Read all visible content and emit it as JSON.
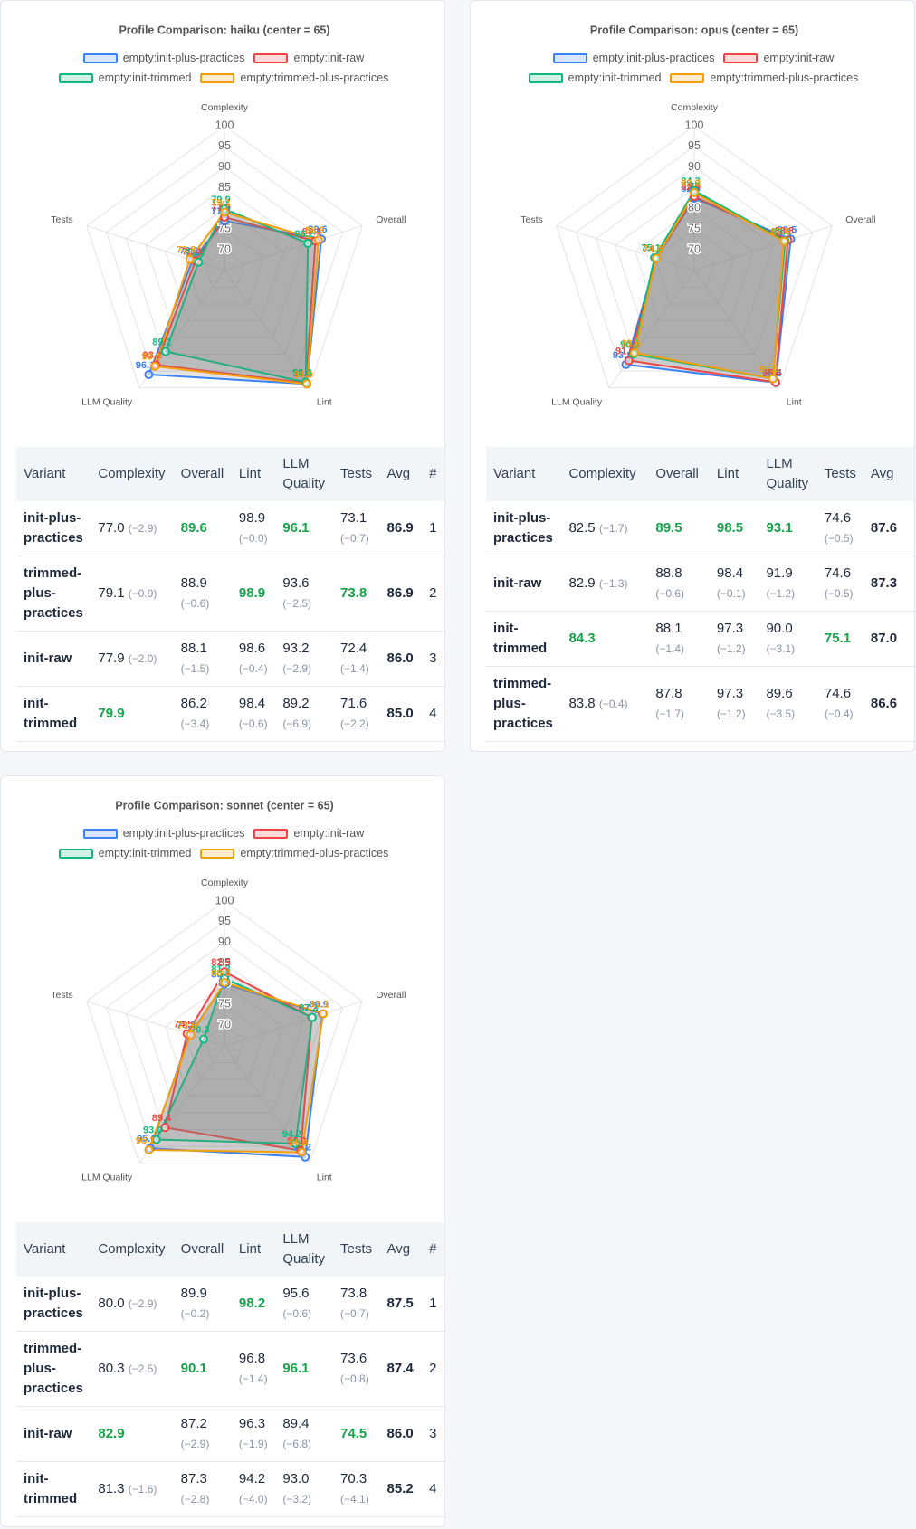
{
  "chart_data": [
    {
      "type": "radar",
      "title": "Profile Comparison: haiku  (center = 65)",
      "axes": [
        "Complexity",
        "Overall",
        "Lint",
        "LLM Quality",
        "Tests"
      ],
      "rlim": [
        65,
        100
      ],
      "rticks": [
        70,
        75,
        80,
        85,
        90,
        95,
        100
      ],
      "series": [
        {
          "name": "empty:init-plus-practices",
          "color": "#3b82f6",
          "values": [
            77.0,
            89.6,
            98.9,
            96.1,
            73.1
          ],
          "value_labels": [
            "77.0",
            "89.6",
            "98.9",
            "96.1",
            "73.1"
          ]
        },
        {
          "name": "empty:init-raw",
          "color": "#ef4444",
          "values": [
            77.9,
            88.1,
            98.6,
            93.2,
            72.4
          ],
          "value_labels": [
            "77.9",
            "88.1",
            "98.6",
            "93.2",
            "72.4"
          ]
        },
        {
          "name": "empty:init-trimmed",
          "color": "#10b981",
          "values": [
            79.9,
            86.2,
            98.4,
            89.2,
            71.6
          ],
          "value_labels": [
            "79.9",
            "86.2",
            "98.4",
            "89.2",
            "71.6"
          ]
        },
        {
          "name": "empty:trimmed-plus-practices",
          "color": "#f59e0b",
          "values": [
            79.1,
            88.9,
            98.9,
            93.6,
            73.8
          ],
          "value_labels": [
            "79.1",
            "88.9",
            "98.9",
            "93.6",
            "73.8"
          ]
        }
      ]
    },
    {
      "type": "radar",
      "title": "Profile Comparison: opus  (center = 65)",
      "axes": [
        "Complexity",
        "Overall",
        "Lint",
        "LLM Quality",
        "Tests"
      ],
      "rlim": [
        65,
        100
      ],
      "rticks": [
        70,
        75,
        80,
        85,
        90,
        95,
        100
      ],
      "series": [
        {
          "name": "empty:init-plus-practices",
          "color": "#3b82f6",
          "values": [
            82.5,
            89.5,
            98.5,
            93.1,
            74.6
          ],
          "value_labels": [
            "82.5",
            "89.5",
            "98.5",
            "93.1",
            "74.6"
          ]
        },
        {
          "name": "empty:init-raw",
          "color": "#ef4444",
          "values": [
            82.9,
            88.8,
            98.4,
            91.9,
            74.6
          ],
          "value_labels": [
            "82.9",
            "88.8",
            "98.4",
            "91.9",
            "74.6"
          ]
        },
        {
          "name": "empty:init-trimmed",
          "color": "#10b981",
          "values": [
            84.3,
            88.1,
            97.3,
            90.0,
            75.1
          ],
          "value_labels": [
            "84.3",
            "88.1",
            "97.3",
            "90.0",
            "75.1"
          ]
        },
        {
          "name": "empty:trimmed-plus-practices",
          "color": "#f59e0b",
          "values": [
            83.8,
            87.8,
            97.3,
            89.6,
            74.6
          ],
          "value_labels": [
            "83.8",
            "87.8",
            "97.3",
            "89.6",
            "74.6"
          ]
        }
      ]
    },
    {
      "type": "radar",
      "title": "Profile Comparison: sonnet  (center = 65)",
      "axes": [
        "Complexity",
        "Overall",
        "Lint",
        "LLM Quality",
        "Tests"
      ],
      "rlim": [
        65,
        100
      ],
      "rticks": [
        70,
        75,
        80,
        85,
        90,
        95,
        100
      ],
      "series": [
        {
          "name": "empty:init-plus-practices",
          "color": "#3b82f6",
          "values": [
            80.0,
            89.9,
            98.2,
            95.6,
            73.8
          ],
          "value_labels": [
            "80.0",
            "89.9",
            "98.2",
            "95.6",
            "73.8"
          ]
        },
        {
          "name": "empty:init-raw",
          "color": "#ef4444",
          "values": [
            82.9,
            87.2,
            96.3,
            89.4,
            74.5
          ],
          "value_labels": [
            "82.9",
            "87.2",
            "96.3",
            "89.4",
            "74.5"
          ]
        },
        {
          "name": "empty:init-trimmed",
          "color": "#10b981",
          "values": [
            81.3,
            87.3,
            94.2,
            93.0,
            70.3
          ],
          "value_labels": [
            "81.3",
            "87.3",
            "94.2",
            "93.0",
            "70.3"
          ]
        },
        {
          "name": "empty:trimmed-plus-practices",
          "color": "#f59e0b",
          "values": [
            80.3,
            90.1,
            96.8,
            96.1,
            73.6
          ],
          "value_labels": [
            "80.3",
            "90.1",
            "96.8",
            "96.1",
            "73.6"
          ]
        }
      ]
    }
  ],
  "tables": [
    {
      "columns": [
        "Variant",
        "Complexity",
        "Overall",
        "Lint",
        "LLM Quality",
        "Tests",
        "Avg",
        "#"
      ],
      "rows": [
        {
          "variant": "init-plus-practices",
          "scores": [
            {
              "value": "77.0",
              "delta": "(−2.9)"
            },
            {
              "value": "89.6",
              "best": true
            },
            {
              "value": "98.9",
              "delta": "(−0.0)"
            },
            {
              "value": "96.1",
              "best": true
            },
            {
              "value": "73.1",
              "delta": "(−0.7)"
            }
          ],
          "avg": "86.9",
          "rank": "1"
        },
        {
          "variant": "trimmed-plus-practices",
          "scores": [
            {
              "value": "79.1",
              "delta": "(−0.9)"
            },
            {
              "value": "88.9",
              "delta": "(−0.6)"
            },
            {
              "value": "98.9",
              "best": true
            },
            {
              "value": "93.6",
              "delta": "(−2.5)"
            },
            {
              "value": "73.8",
              "best": true
            }
          ],
          "avg": "86.9",
          "rank": "2"
        },
        {
          "variant": "init-raw",
          "scores": [
            {
              "value": "77.9",
              "delta": "(−2.0)"
            },
            {
              "value": "88.1",
              "delta": "(−1.5)"
            },
            {
              "value": "98.6",
              "delta": "(−0.4)"
            },
            {
              "value": "93.2",
              "delta": "(−2.9)"
            },
            {
              "value": "72.4",
              "delta": "(−1.4)"
            }
          ],
          "avg": "86.0",
          "rank": "3"
        },
        {
          "variant": "init-trimmed",
          "scores": [
            {
              "value": "79.9",
              "best": true
            },
            {
              "value": "86.2",
              "delta": "(−3.4)"
            },
            {
              "value": "98.4",
              "delta": "(−0.6)"
            },
            {
              "value": "89.2",
              "delta": "(−6.9)"
            },
            {
              "value": "71.6",
              "delta": "(−2.2)"
            }
          ],
          "avg": "85.0",
          "rank": "4"
        }
      ]
    },
    {
      "columns": [
        "Variant",
        "Complexity",
        "Overall",
        "Lint",
        "LLM Quality",
        "Tests",
        "Avg"
      ],
      "rows": [
        {
          "variant": "init-plus-practices",
          "scores": [
            {
              "value": "82.5",
              "delta": "(−1.7)"
            },
            {
              "value": "89.5",
              "best": true
            },
            {
              "value": "98.5",
              "best": true
            },
            {
              "value": "93.1",
              "best": true
            },
            {
              "value": "74.6",
              "delta": "(−0.5)"
            }
          ],
          "avg": "87.6"
        },
        {
          "variant": "init-raw",
          "scores": [
            {
              "value": "82.9",
              "delta": "(−1.3)"
            },
            {
              "value": "88.8",
              "delta": "(−0.6)"
            },
            {
              "value": "98.4",
              "delta": "(−0.1)"
            },
            {
              "value": "91.9",
              "delta": "(−1.2)"
            },
            {
              "value": "74.6",
              "delta": "(−0.5)"
            }
          ],
          "avg": "87.3"
        },
        {
          "variant": "init-trimmed",
          "scores": [
            {
              "value": "84.3",
              "best": true
            },
            {
              "value": "88.1",
              "delta": "(−1.4)"
            },
            {
              "value": "97.3",
              "delta": "(−1.2)"
            },
            {
              "value": "90.0",
              "delta": "(−3.1)"
            },
            {
              "value": "75.1",
              "best": true
            }
          ],
          "avg": "87.0"
        },
        {
          "variant": "trimmed-plus-practices",
          "scores": [
            {
              "value": "83.8",
              "delta": "(−0.4)"
            },
            {
              "value": "87.8",
              "delta": "(−1.7)"
            },
            {
              "value": "97.3",
              "delta": "(−1.2)"
            },
            {
              "value": "89.6",
              "delta": "(−3.5)"
            },
            {
              "value": "74.6",
              "delta": "(−0.4)"
            }
          ],
          "avg": "86.6"
        }
      ]
    },
    {
      "columns": [
        "Variant",
        "Complexity",
        "Overall",
        "Lint",
        "LLM Quality",
        "Tests",
        "Avg",
        "#"
      ],
      "rows": [
        {
          "variant": "init-plus-practices",
          "scores": [
            {
              "value": "80.0",
              "delta": "(−2.9)"
            },
            {
              "value": "89.9",
              "delta": "(−0.2)"
            },
            {
              "value": "98.2",
              "best": true
            },
            {
              "value": "95.6",
              "delta": "(−0.6)"
            },
            {
              "value": "73.8",
              "delta": "(−0.7)"
            }
          ],
          "avg": "87.5",
          "rank": "1"
        },
        {
          "variant": "trimmed-plus-practices",
          "scores": [
            {
              "value": "80.3",
              "delta": "(−2.5)"
            },
            {
              "value": "90.1",
              "best": true
            },
            {
              "value": "96.8",
              "delta": "(−1.4)"
            },
            {
              "value": "96.1",
              "best": true
            },
            {
              "value": "73.6",
              "delta": "(−0.8)"
            }
          ],
          "avg": "87.4",
          "rank": "2"
        },
        {
          "variant": "init-raw",
          "scores": [
            {
              "value": "82.9",
              "best": true
            },
            {
              "value": "87.2",
              "delta": "(−2.9)"
            },
            {
              "value": "96.3",
              "delta": "(−1.9)"
            },
            {
              "value": "89.4",
              "delta": "(−6.8)"
            },
            {
              "value": "74.5",
              "best": true
            }
          ],
          "avg": "86.0",
          "rank": "3"
        },
        {
          "variant": "init-trimmed",
          "scores": [
            {
              "value": "81.3",
              "delta": "(−1.6)"
            },
            {
              "value": "87.3",
              "delta": "(−2.8)"
            },
            {
              "value": "94.2",
              "delta": "(−4.0)"
            },
            {
              "value": "93.0",
              "delta": "(−3.2)"
            },
            {
              "value": "70.3",
              "delta": "(−4.1)"
            }
          ],
          "avg": "85.2",
          "rank": "4"
        }
      ]
    }
  ]
}
